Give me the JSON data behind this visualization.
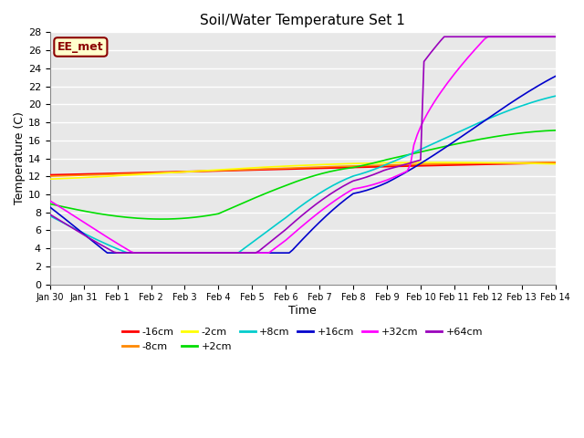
{
  "title": "Soil/Water Temperature Set 1",
  "xlabel": "Time",
  "ylabel": "Temperature (C)",
  "annotation": "EE_met",
  "ylim": [
    0,
    28
  ],
  "yticks": [
    0,
    2,
    4,
    6,
    8,
    10,
    12,
    14,
    16,
    18,
    20,
    22,
    24,
    26,
    28
  ],
  "xtick_labels": [
    "Jan 30",
    "Jan 31",
    "Feb 1",
    "Feb 2",
    "Feb 3",
    "Feb 4",
    "Feb 5",
    "Feb 6",
    "Feb 7",
    "Feb 8",
    "Feb 9",
    "Feb 10",
    "Feb 11",
    "Feb 12",
    "Feb 13",
    "Feb 14"
  ],
  "series": {
    "-16cm": {
      "color": "#ff0000",
      "lw": 1.5
    },
    "-8cm": {
      "color": "#ff8800",
      "lw": 1.2
    },
    "-2cm": {
      "color": "#ffff00",
      "lw": 1.2
    },
    "+2cm": {
      "color": "#00dd00",
      "lw": 1.2
    },
    "+8cm": {
      "color": "#00cccc",
      "lw": 1.2
    },
    "+16cm": {
      "color": "#0000cc",
      "lw": 1.2
    },
    "+32cm": {
      "color": "#ff00ff",
      "lw": 1.2
    },
    "+64cm": {
      "color": "#9900bb",
      "lw": 1.2
    }
  },
  "bg_color": "#e8e8e8",
  "fig_bg": "#ffffff",
  "grid_color": "#ffffff"
}
